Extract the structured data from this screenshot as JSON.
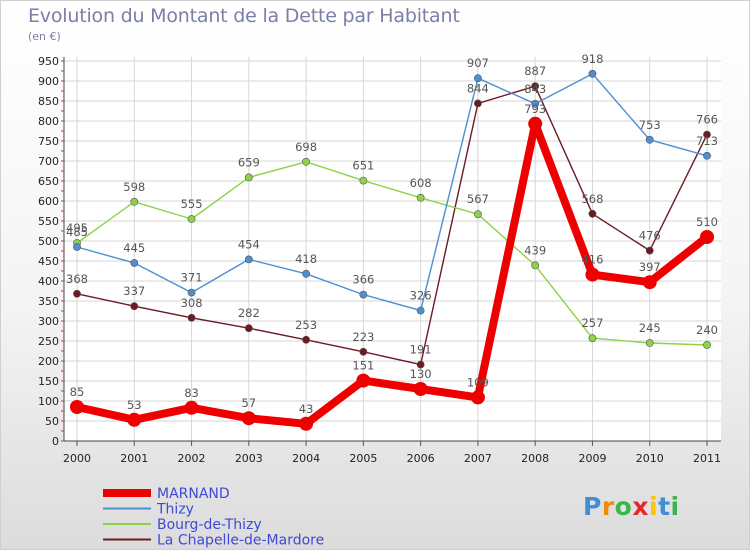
{
  "chart_data": {
    "type": "line",
    "title": "Evolution du Montant de la Dette par Habitant",
    "subtitle": "(en €)",
    "x": [
      "2000",
      "2001",
      "2002",
      "2003",
      "2004",
      "2005",
      "2006",
      "2007",
      "2008",
      "2009",
      "2010",
      "2011"
    ],
    "ylim": [
      0,
      950
    ],
    "yticks": [
      0,
      50,
      100,
      150,
      200,
      250,
      300,
      350,
      400,
      450,
      500,
      550,
      600,
      650,
      700,
      750,
      800,
      850,
      900,
      950
    ],
    "grid": true,
    "legend_position": "bottom-left",
    "series": [
      {
        "name": "MARNAND",
        "color": "#ee0000",
        "values": [
          85,
          53,
          83,
          57,
          43,
          151,
          130,
          109,
          793,
          416,
          397,
          510
        ]
      },
      {
        "name": "Thizy",
        "color": "#4d8fd1",
        "values": [
          485,
          445,
          371,
          454,
          418,
          366,
          326,
          907,
          843,
          918,
          753,
          713
        ]
      },
      {
        "name": "Bourg-de-Thizy",
        "color": "#8ed24a",
        "values": [
          495,
          598,
          555,
          659,
          698,
          651,
          608,
          567,
          439,
          257,
          245,
          240
        ]
      },
      {
        "name": "La Chapelle-de-Mardore",
        "color": "#6e1a22",
        "values": [
          368,
          337,
          308,
          282,
          253,
          223,
          191,
          844,
          887,
          568,
          476,
          766
        ]
      }
    ]
  },
  "logo": {
    "letters": [
      "P",
      "r",
      "o",
      "x",
      "i",
      "t",
      "i"
    ],
    "colors": [
      "#3d8fd6",
      "#f08a00",
      "#39b54a",
      "#e8262b",
      "#ffc20e",
      "#3d8fd6",
      "#39b54a"
    ]
  }
}
